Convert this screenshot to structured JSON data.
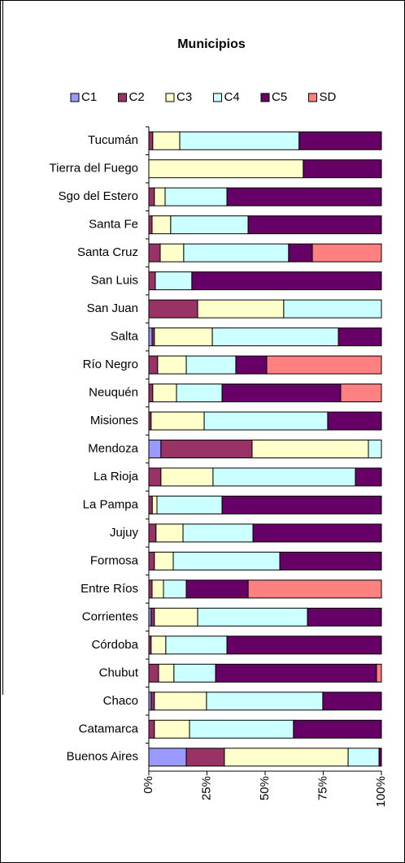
{
  "chart_data": {
    "type": "bar",
    "orientation": "horizontal",
    "stacked": "percent",
    "title": "Municipios",
    "categories": [
      "Tucumán",
      "Tierra del Fuego",
      "Sgo del Estero",
      "Santa Fe",
      "Santa Cruz",
      "San Luis",
      "San Juan",
      "Salta",
      "Río Negro",
      "Neuquén",
      "Misiones",
      "Mendoza",
      "La Rioja",
      "La Pampa",
      "Jujuy",
      "Formosa",
      "Entre Ríos",
      "Corrientes",
      "Córdoba",
      "Chubut",
      "Chaco",
      "Catamarca",
      "Buenos Aires"
    ],
    "series": [
      {
        "name": "C1",
        "color": "#9999ff",
        "values": [
          0,
          0,
          0,
          0,
          0,
          0,
          0,
          1.4,
          0,
          0,
          0,
          5.2,
          0,
          0,
          0,
          0,
          0,
          1,
          0,
          0,
          1,
          0,
          16.1
        ]
      },
      {
        "name": "C2",
        "color": "#993366",
        "values": [
          1.7,
          0,
          2.4,
          1.4,
          4.9,
          2.8,
          21,
          1,
          3.8,
          1.7,
          1,
          39.2,
          5.2,
          1.5,
          3.1,
          2.4,
          1.4,
          1.4,
          1,
          4.2,
          1.4,
          2.4,
          16.4
        ]
      },
      {
        "name": "C3",
        "color": "#ffffcc",
        "values": [
          11.6,
          66.4,
          4.6,
          8,
          10.1,
          0,
          37,
          24.9,
          12.3,
          10.2,
          22.8,
          50,
          22.4,
          2,
          11.6,
          8.1,
          4.9,
          18.6,
          6.3,
          6.6,
          22.4,
          15.1,
          53.2
        ]
      },
      {
        "name": "C4",
        "color": "#ccffff",
        "values": [
          51.3,
          0,
          26.6,
          33.3,
          45.1,
          15.7,
          42,
          54.2,
          21.3,
          19.6,
          53.1,
          5.6,
          61.2,
          28,
          30.1,
          45.8,
          9.8,
          47.2,
          26.3,
          17.9,
          50,
          44.7,
          13.3
        ]
      },
      {
        "name": "C5",
        "color": "#660066",
        "values": [
          35.4,
          33.6,
          66.4,
          57.3,
          10.2,
          81.5,
          0,
          18.5,
          13.3,
          51,
          23.1,
          0,
          11.2,
          68.5,
          55.2,
          43.7,
          26.6,
          31.8,
          66.4,
          69.2,
          25.2,
          37.8,
          1
        ]
      },
      {
        "name": "SD",
        "color": "#ff8080",
        "values": [
          0,
          0,
          0,
          0,
          29.7,
          0,
          0,
          0,
          49.3,
          17.5,
          0,
          0,
          0,
          0,
          0,
          0,
          57.3,
          0,
          0,
          2.1,
          0,
          0,
          0
        ]
      }
    ],
    "xlim": [
      0,
      100
    ],
    "xticks": [
      {
        "value": 0,
        "label": "0%"
      },
      {
        "value": 25,
        "label": "25%"
      },
      {
        "value": 50,
        "label": "50%"
      },
      {
        "value": 75,
        "label": "75%"
      },
      {
        "value": 100,
        "label": "100%"
      }
    ],
    "legend": "top"
  }
}
